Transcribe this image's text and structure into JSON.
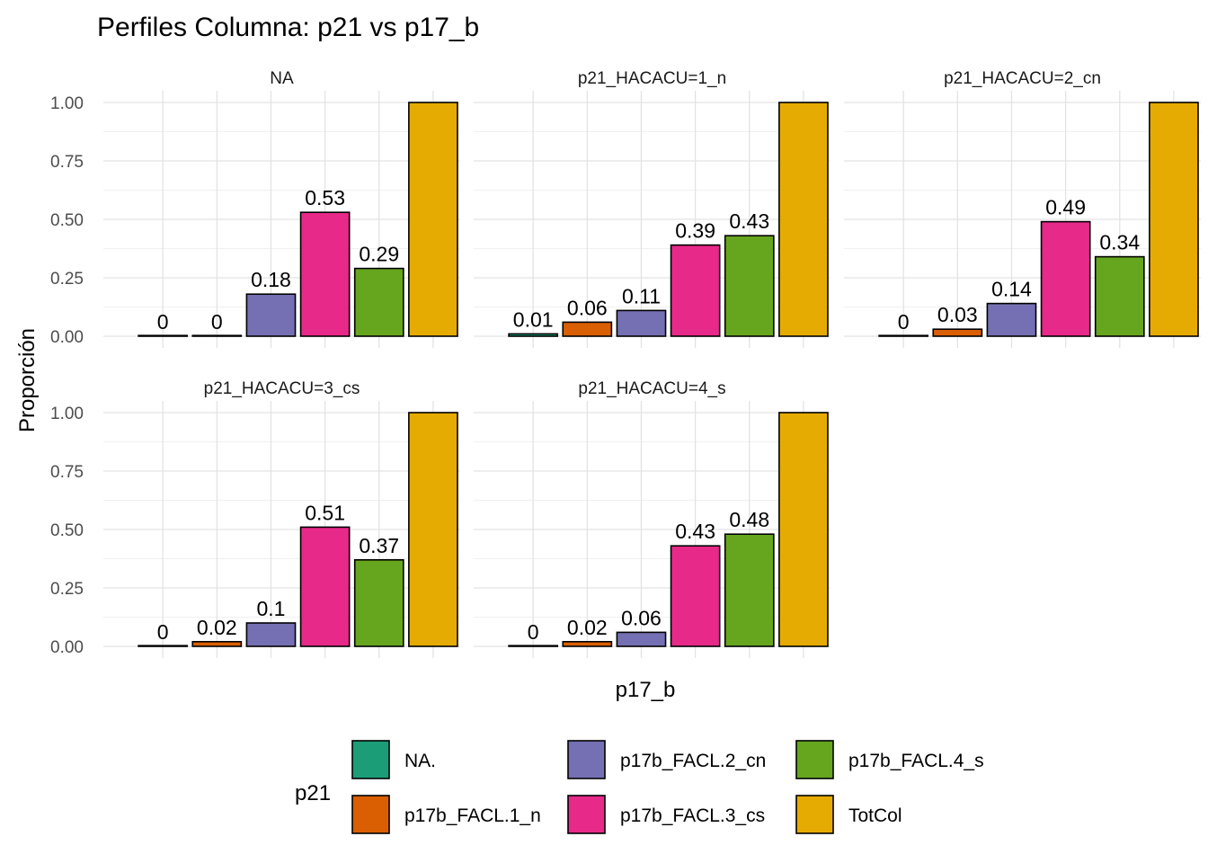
{
  "chart_data": {
    "type": "bar",
    "title": "Perfiles Columna: p21 vs p17_b",
    "xlabel": "p17_b",
    "ylabel": "Proporción",
    "ylim": [
      0,
      1
    ],
    "y_ticks": [
      "0.00",
      "0.25",
      "0.50",
      "0.75",
      "1.00"
    ],
    "grid": true,
    "categories": [
      "NA.",
      "p17b_FACL.1_n",
      "p17b_FACL.2_cn",
      "p17b_FACL.3_cs",
      "p17b_FACL.4_s",
      "TotCol"
    ],
    "facets": [
      {
        "name": "NA",
        "values": [
          0,
          0,
          0.18,
          0.53,
          0.29,
          1.0
        ],
        "labels": [
          "0",
          "0",
          "0.18",
          "0.53",
          "0.29",
          ""
        ]
      },
      {
        "name": "p21_HACACU=1_n",
        "values": [
          0.01,
          0.06,
          0.11,
          0.39,
          0.43,
          1.0
        ],
        "labels": [
          "0.01",
          "0.06",
          "0.11",
          "0.39",
          "0.43",
          ""
        ]
      },
      {
        "name": "p21_HACACU=2_cn",
        "values": [
          0,
          0.03,
          0.14,
          0.49,
          0.34,
          1.0
        ],
        "labels": [
          "0",
          "0.03",
          "0.14",
          "0.49",
          "0.34",
          ""
        ]
      },
      {
        "name": "p21_HACACU=3_cs",
        "values": [
          0,
          0.02,
          0.1,
          0.51,
          0.37,
          1.0
        ],
        "labels": [
          "0",
          "0.02",
          "0.1",
          "0.51",
          "0.37",
          ""
        ]
      },
      {
        "name": "p21_HACACU=4_s",
        "values": [
          0,
          0.02,
          0.06,
          0.43,
          0.48,
          1.0
        ],
        "labels": [
          "0",
          "0.02",
          "0.06",
          "0.43",
          "0.48",
          ""
        ]
      }
    ],
    "legend": {
      "title": "p21",
      "placement": "bottom",
      "items": [
        {
          "name": "NA.",
          "color": "#1B9E77"
        },
        {
          "name": "p17b_FACL.1_n",
          "color": "#D95F02"
        },
        {
          "name": "p17b_FACL.2_cn",
          "color": "#7570B3"
        },
        {
          "name": "p17b_FACL.3_cs",
          "color": "#E7298A"
        },
        {
          "name": "p17b_FACL.4_s",
          "color": "#66A61E"
        },
        {
          "name": "TotCol",
          "color": "#E6AB02"
        }
      ]
    }
  }
}
